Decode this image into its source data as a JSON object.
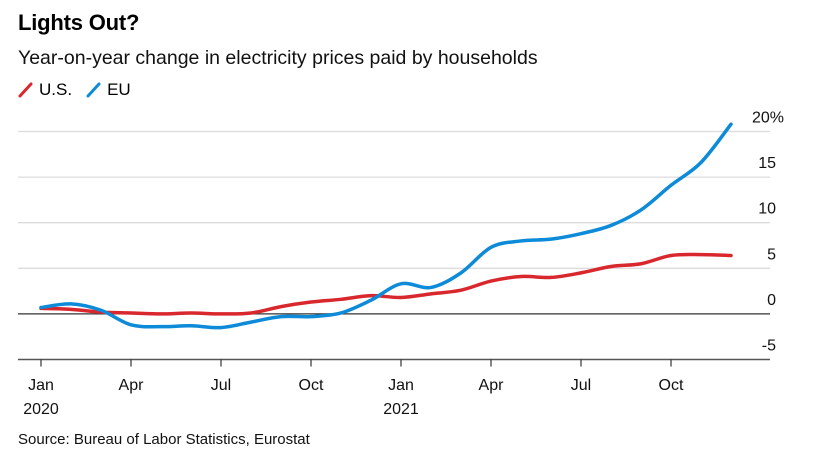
{
  "header": {
    "title": "Lights Out?",
    "subtitle": "Year-on-year change in electricity prices paid by households"
  },
  "legend": [
    {
      "label": "U.S.",
      "color": "#d9282d",
      "icon": "slash-line-icon"
    },
    {
      "label": "EU",
      "color": "#0d8ad8",
      "icon": "slash-line-icon"
    }
  ],
  "footer": {
    "source": "Source: Bureau of Labor Statistics, Eurostat"
  },
  "chart_data": {
    "type": "line",
    "title": "Lights Out?",
    "subtitle": "Year-on-year change in electricity prices paid by households",
    "xlabel": "",
    "ylabel": "",
    "ylim": [
      -5,
      20
    ],
    "yticks": [
      {
        "value": 20,
        "label": "20%"
      },
      {
        "value": 15,
        "label": "15"
      },
      {
        "value": 10,
        "label": "10"
      },
      {
        "value": 5,
        "label": "5"
      },
      {
        "value": 0,
        "label": "0"
      },
      {
        "value": -5,
        "label": "-5"
      }
    ],
    "xticks": [
      {
        "month_index": 0,
        "label": "Jan",
        "sublabel": "2020"
      },
      {
        "month_index": 3,
        "label": "Apr",
        "sublabel": ""
      },
      {
        "month_index": 6,
        "label": "Jul",
        "sublabel": ""
      },
      {
        "month_index": 9,
        "label": "Oct",
        "sublabel": ""
      },
      {
        "month_index": 12,
        "label": "Jan",
        "sublabel": "2021"
      },
      {
        "month_index": 15,
        "label": "Apr",
        "sublabel": ""
      },
      {
        "month_index": 18,
        "label": "Jul",
        "sublabel": ""
      },
      {
        "month_index": 21,
        "label": "Oct",
        "sublabel": ""
      }
    ],
    "x": [
      "2020-01",
      "2020-02",
      "2020-03",
      "2020-04",
      "2020-05",
      "2020-06",
      "2020-07",
      "2020-08",
      "2020-09",
      "2020-10",
      "2020-11",
      "2020-12",
      "2021-01",
      "2021-02",
      "2021-03",
      "2021-04",
      "2021-05",
      "2021-06",
      "2021-07",
      "2021-08",
      "2021-09",
      "2021-10",
      "2021-11",
      "2021-12"
    ],
    "series": [
      {
        "name": "U.S.",
        "color": "#d9282d",
        "values": [
          0.6,
          0.5,
          0.2,
          0.1,
          0.0,
          0.1,
          0.0,
          0.1,
          0.8,
          1.3,
          1.6,
          2.0,
          1.8,
          2.2,
          2.6,
          3.6,
          4.1,
          4.0,
          4.5,
          5.2,
          5.5,
          6.4,
          6.5,
          6.4
        ]
      },
      {
        "name": "EU",
        "color": "#0d8ad8",
        "values": [
          0.7,
          1.1,
          0.4,
          -1.2,
          -1.4,
          -1.3,
          -1.5,
          -0.9,
          -0.3,
          -0.3,
          0.1,
          1.5,
          3.3,
          2.9,
          4.5,
          7.3,
          8.0,
          8.2,
          8.8,
          9.7,
          11.4,
          14.1,
          16.6,
          20.8
        ]
      }
    ],
    "grid": true,
    "legend_position": "top-left",
    "y_axis_side": "right"
  }
}
